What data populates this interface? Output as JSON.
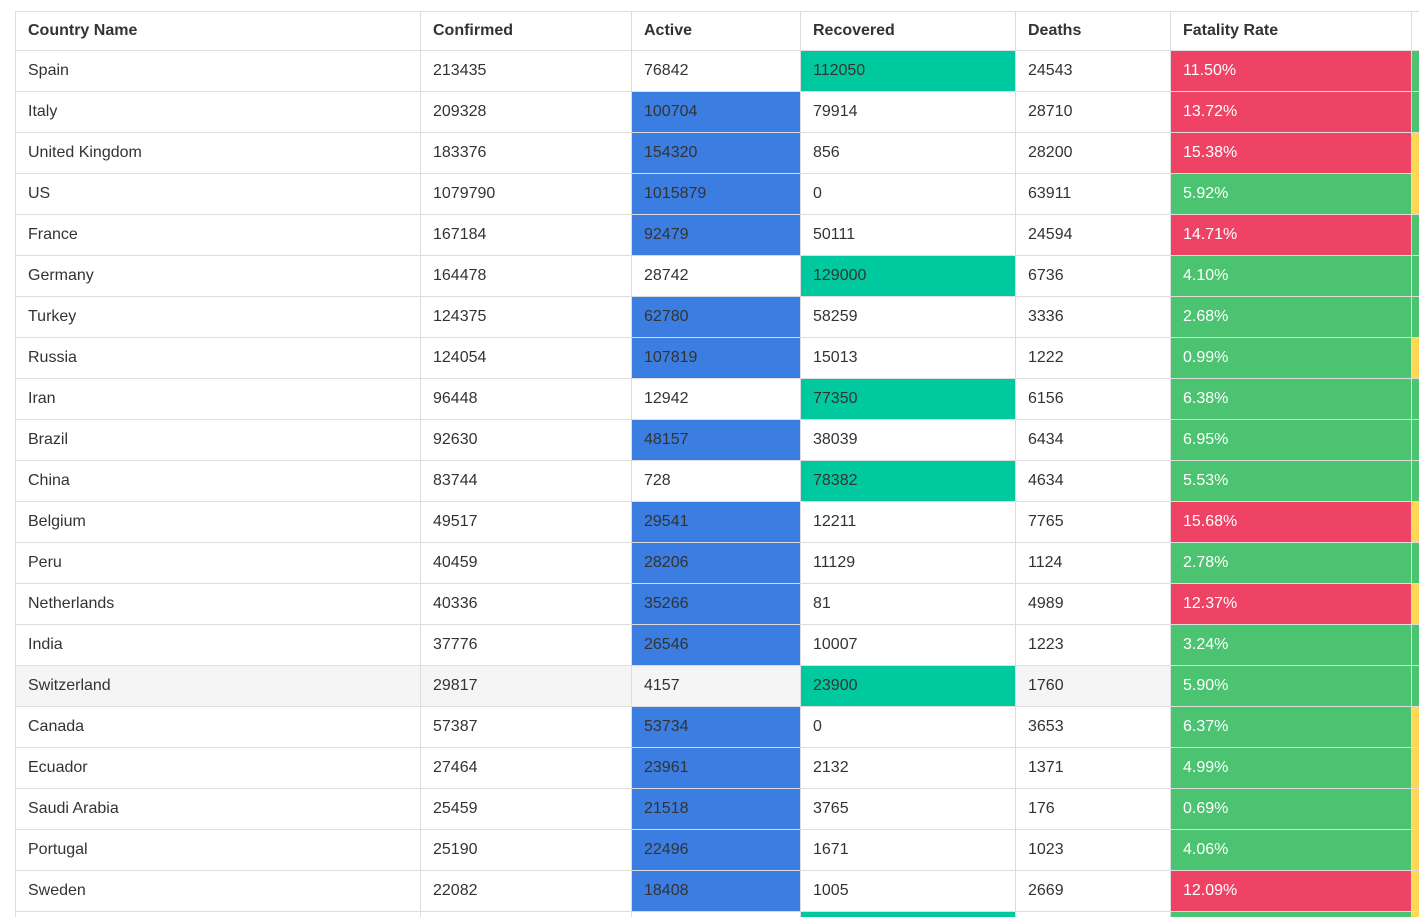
{
  "page": {
    "description": "COVID-19 country statistics table with conditional formatting",
    "background": "#ffffff"
  },
  "colors": {
    "active_highlight_blue": "#3B7DE0",
    "recovered_highlight_teal": "#00C9A0",
    "fatality_high_red": "#EF4365",
    "fatality_low_green": "#4CC370",
    "strip_ok_green": "#4CC370",
    "strip_warning_yellow": "#FDD755",
    "border": "#DDDDDD",
    "header_text": "#333333",
    "cell_text": "#333333",
    "fatality_text": "#FFFFFF",
    "hover_row": "#F5F5F5"
  },
  "table": {
    "columns": [
      {
        "key": "country",
        "label": "Country Name"
      },
      {
        "key": "confirmed",
        "label": "Confirmed"
      },
      {
        "key": "active",
        "label": "Active"
      },
      {
        "key": "recovered",
        "label": "Recovered"
      },
      {
        "key": "deaths",
        "label": "Deaths"
      },
      {
        "key": "fatality",
        "label": "Fatality Rate"
      },
      {
        "key": "strip",
        "label": ""
      }
    ],
    "rows": [
      {
        "country": "Spain",
        "confirmed": "213435",
        "active": "76842",
        "recovered": "112050",
        "deaths": "24543",
        "fatality_rate": "11.50%",
        "active_highlight": false,
        "recovered_highlight": true,
        "fatality_level": "high",
        "recovery_strip": "ok",
        "hovered": false,
        "partial": false
      },
      {
        "country": "Italy",
        "confirmed": "209328",
        "active": "100704",
        "recovered": "79914",
        "deaths": "28710",
        "fatality_rate": "13.72%",
        "active_highlight": true,
        "recovered_highlight": false,
        "fatality_level": "high",
        "recovery_strip": "ok",
        "hovered": false,
        "partial": false
      },
      {
        "country": "United Kingdom",
        "confirmed": "183376",
        "active": "154320",
        "recovered": "856",
        "deaths": "28200",
        "fatality_rate": "15.38%",
        "active_highlight": true,
        "recovered_highlight": false,
        "fatality_level": "high",
        "recovery_strip": "warning",
        "hovered": false,
        "partial": false
      },
      {
        "country": "US",
        "confirmed": "1079790",
        "active": "1015879",
        "recovered": "0",
        "deaths": "63911",
        "fatality_rate": "5.92%",
        "active_highlight": true,
        "recovered_highlight": false,
        "fatality_level": "low",
        "recovery_strip": "warning",
        "hovered": false,
        "partial": false
      },
      {
        "country": "France",
        "confirmed": "167184",
        "active": "92479",
        "recovered": "50111",
        "deaths": "24594",
        "fatality_rate": "14.71%",
        "active_highlight": true,
        "recovered_highlight": false,
        "fatality_level": "high",
        "recovery_strip": "ok",
        "hovered": false,
        "partial": false
      },
      {
        "country": "Germany",
        "confirmed": "164478",
        "active": "28742",
        "recovered": "129000",
        "deaths": "6736",
        "fatality_rate": "4.10%",
        "active_highlight": false,
        "recovered_highlight": true,
        "fatality_level": "low",
        "recovery_strip": "ok",
        "hovered": false,
        "partial": false
      },
      {
        "country": "Turkey",
        "confirmed": "124375",
        "active": "62780",
        "recovered": "58259",
        "deaths": "3336",
        "fatality_rate": "2.68%",
        "active_highlight": true,
        "recovered_highlight": false,
        "fatality_level": "low",
        "recovery_strip": "ok",
        "hovered": false,
        "partial": false
      },
      {
        "country": "Russia",
        "confirmed": "124054",
        "active": "107819",
        "recovered": "15013",
        "deaths": "1222",
        "fatality_rate": "0.99%",
        "active_highlight": true,
        "recovered_highlight": false,
        "fatality_level": "low",
        "recovery_strip": "warning",
        "hovered": false,
        "partial": false
      },
      {
        "country": "Iran",
        "confirmed": "96448",
        "active": "12942",
        "recovered": "77350",
        "deaths": "6156",
        "fatality_rate": "6.38%",
        "active_highlight": false,
        "recovered_highlight": true,
        "fatality_level": "low",
        "recovery_strip": "ok",
        "hovered": false,
        "partial": false
      },
      {
        "country": "Brazil",
        "confirmed": "92630",
        "active": "48157",
        "recovered": "38039",
        "deaths": "6434",
        "fatality_rate": "6.95%",
        "active_highlight": true,
        "recovered_highlight": false,
        "fatality_level": "low",
        "recovery_strip": "ok",
        "hovered": false,
        "partial": false
      },
      {
        "country": "China",
        "confirmed": "83744",
        "active": "728",
        "recovered": "78382",
        "deaths": "4634",
        "fatality_rate": "5.53%",
        "active_highlight": false,
        "recovered_highlight": true,
        "fatality_level": "low",
        "recovery_strip": "ok",
        "hovered": false,
        "partial": false
      },
      {
        "country": "Belgium",
        "confirmed": "49517",
        "active": "29541",
        "recovered": "12211",
        "deaths": "7765",
        "fatality_rate": "15.68%",
        "active_highlight": true,
        "recovered_highlight": false,
        "fatality_level": "high",
        "recovery_strip": "warning",
        "hovered": false,
        "partial": false
      },
      {
        "country": "Peru",
        "confirmed": "40459",
        "active": "28206",
        "recovered": "11129",
        "deaths": "1124",
        "fatality_rate": "2.78%",
        "active_highlight": true,
        "recovered_highlight": false,
        "fatality_level": "low",
        "recovery_strip": "ok",
        "hovered": false,
        "partial": false
      },
      {
        "country": "Netherlands",
        "confirmed": "40336",
        "active": "35266",
        "recovered": "81",
        "deaths": "4989",
        "fatality_rate": "12.37%",
        "active_highlight": true,
        "recovered_highlight": false,
        "fatality_level": "high",
        "recovery_strip": "warning",
        "hovered": false,
        "partial": false
      },
      {
        "country": "India",
        "confirmed": "37776",
        "active": "26546",
        "recovered": "10007",
        "deaths": "1223",
        "fatality_rate": "3.24%",
        "active_highlight": true,
        "recovered_highlight": false,
        "fatality_level": "low",
        "recovery_strip": "ok",
        "hovered": false,
        "partial": false
      },
      {
        "country": "Switzerland",
        "confirmed": "29817",
        "active": "4157",
        "recovered": "23900",
        "deaths": "1760",
        "fatality_rate": "5.90%",
        "active_highlight": false,
        "recovered_highlight": true,
        "fatality_level": "low",
        "recovery_strip": "ok",
        "hovered": true,
        "partial": false
      },
      {
        "country": "Canada",
        "confirmed": "57387",
        "active": "53734",
        "recovered": "0",
        "deaths": "3653",
        "fatality_rate": "6.37%",
        "active_highlight": true,
        "recovered_highlight": false,
        "fatality_level": "low",
        "recovery_strip": "warning",
        "hovered": false,
        "partial": false
      },
      {
        "country": "Ecuador",
        "confirmed": "27464",
        "active": "23961",
        "recovered": "2132",
        "deaths": "1371",
        "fatality_rate": "4.99%",
        "active_highlight": true,
        "recovered_highlight": false,
        "fatality_level": "low",
        "recovery_strip": "warning",
        "hovered": false,
        "partial": false
      },
      {
        "country": "Saudi Arabia",
        "confirmed": "25459",
        "active": "21518",
        "recovered": "3765",
        "deaths": "176",
        "fatality_rate": "0.69%",
        "active_highlight": true,
        "recovered_highlight": false,
        "fatality_level": "low",
        "recovery_strip": "warning",
        "hovered": false,
        "partial": false
      },
      {
        "country": "Portugal",
        "confirmed": "25190",
        "active": "22496",
        "recovered": "1671",
        "deaths": "1023",
        "fatality_rate": "4.06%",
        "active_highlight": true,
        "recovered_highlight": false,
        "fatality_level": "low",
        "recovery_strip": "warning",
        "hovered": false,
        "partial": false
      },
      {
        "country": "Sweden",
        "confirmed": "22082",
        "active": "18408",
        "recovered": "1005",
        "deaths": "2669",
        "fatality_rate": "12.09%",
        "active_highlight": true,
        "recovered_highlight": false,
        "fatality_level": "high",
        "recovery_strip": "warning",
        "hovered": false,
        "partial": false
      },
      {
        "country": "",
        "confirmed": "",
        "active": "",
        "recovered": "",
        "deaths": "",
        "fatality_rate": "",
        "active_highlight": false,
        "recovered_highlight": true,
        "fatality_level": "low",
        "recovery_strip": "warning",
        "hovered": false,
        "partial": true
      }
    ]
  }
}
